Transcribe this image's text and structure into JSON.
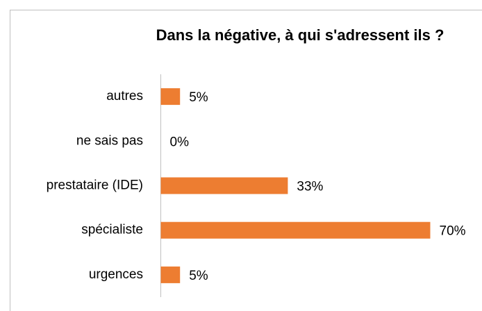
{
  "chart_data": {
    "type": "hbar",
    "title": "Dans la négative, à qui s'adressent ils ?",
    "categories": [
      "autres",
      "ne sais pas",
      "prestataire (IDE)",
      "spécialiste",
      "urgences"
    ],
    "values": [
      5,
      0,
      33,
      70,
      5
    ],
    "value_labels": [
      "5%",
      "0%",
      "33%",
      "70%",
      "5%"
    ],
    "color": "#ed7d31"
  }
}
